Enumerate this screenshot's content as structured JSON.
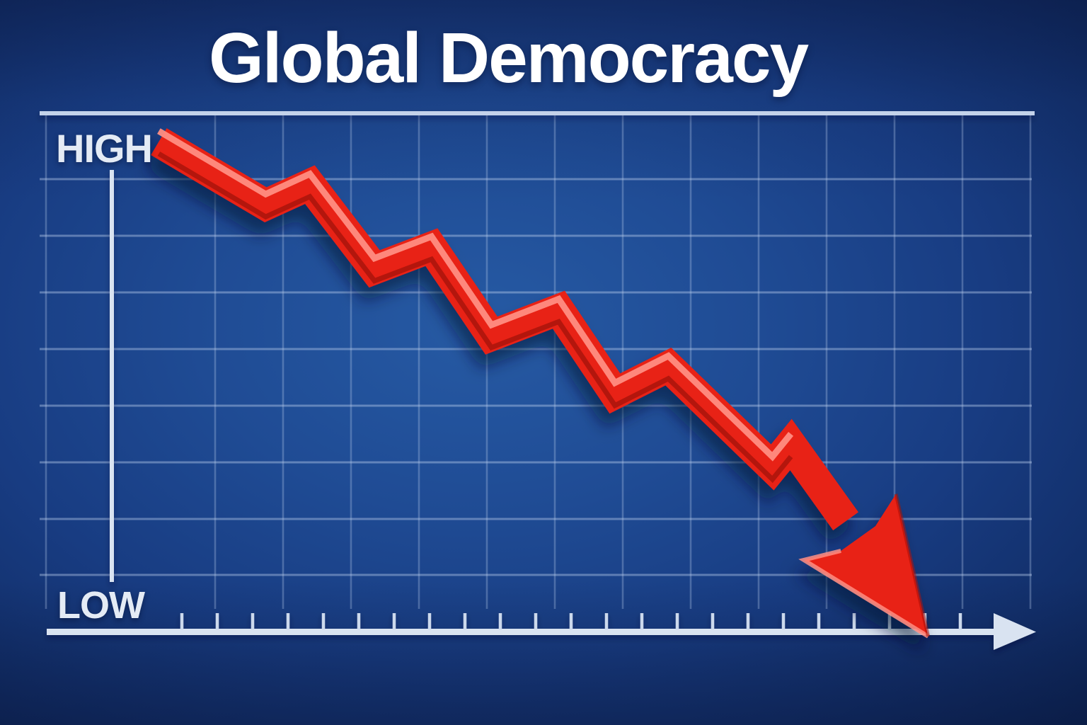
{
  "title": "Global Democracy",
  "y_axis": {
    "high_label": "HIGH",
    "low_label": "LOW"
  },
  "x_axis": {
    "tick_count": 23,
    "has_arrow_head": true,
    "labels": []
  },
  "chart_data": {
    "type": "line",
    "title": "Global Democracy",
    "ylabel_top": "HIGH",
    "ylabel_bottom": "LOW",
    "xlabel": "",
    "x_range_pct": [
      0,
      100
    ],
    "y_range_pct": [
      0,
      100
    ],
    "grid": true,
    "legend": "none",
    "trend": "declining zigzag ending in large downward arrowhead at the baseline",
    "series": [
      {
        "name": "Global Democracy trend",
        "color": "#e82013",
        "points_pct": [
          [
            5.1,
            94.5
          ],
          [
            16.7,
            82.3
          ],
          [
            21.5,
            86.2
          ],
          [
            28.5,
            69.9
          ],
          [
            34.7,
            74.1
          ],
          [
            41.2,
            57.0
          ],
          [
            48.5,
            62.0
          ],
          [
            54.6,
            45.8
          ],
          [
            60.4,
            51.0
          ],
          [
            71.7,
            31.5
          ],
          [
            73.7,
            35.9
          ],
          [
            88.6,
            -1.2
          ]
        ]
      }
    ],
    "colors": {
      "arrow": "#e82013",
      "arrow_highlight": "#ff8e82",
      "arrow_shade": "#a51306",
      "background_center": "#265aa4",
      "background_edge": "#0c2352",
      "grid": "#bdd0ee",
      "axis": "#d9e3f1",
      "top_border": "#c3d2ea",
      "tick": "#ccd9ec",
      "title_text": "#ffffff",
      "label_text": "#e4ebf5"
    }
  }
}
